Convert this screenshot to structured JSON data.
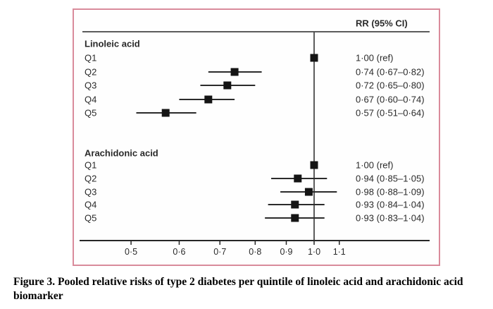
{
  "chart_data": {
    "type": "scatter",
    "variant": "forest-plot",
    "header_label": "RR (95% CI)",
    "x_scale": "log",
    "x_ticks": [
      0.5,
      0.6,
      0.7,
      0.8,
      0.9,
      1.0,
      1.1
    ],
    "x_tick_labels": [
      "0·5",
      "0·6",
      "0·7",
      "0·8",
      "0·9",
      "1·0",
      "1·1"
    ],
    "x_range": [
      0.45,
      1.18
    ],
    "reference_line": 1.0,
    "legend": "none",
    "grid": false,
    "groups": [
      {
        "label": "Linoleic acid",
        "rows": [
          {
            "label": "Q1",
            "rr": 1.0,
            "ci_low": null,
            "ci_high": null,
            "text": "1·00 (ref)"
          },
          {
            "label": "Q2",
            "rr": 0.74,
            "ci_low": 0.67,
            "ci_high": 0.82,
            "text": "0·74 (0·67–0·82)"
          },
          {
            "label": "Q3",
            "rr": 0.72,
            "ci_low": 0.65,
            "ci_high": 0.8,
            "text": "0·72 (0·65–0·80)"
          },
          {
            "label": "Q4",
            "rr": 0.67,
            "ci_low": 0.6,
            "ci_high": 0.74,
            "text": "0·67 (0·60–0·74)"
          },
          {
            "label": "Q5",
            "rr": 0.57,
            "ci_low": 0.51,
            "ci_high": 0.64,
            "text": "0·57 (0·51–0·64)"
          }
        ]
      },
      {
        "label": "Arachidonic acid",
        "rows": [
          {
            "label": "Q1",
            "rr": 1.0,
            "ci_low": null,
            "ci_high": null,
            "text": "1·00 (ref)"
          },
          {
            "label": "Q2",
            "rr": 0.94,
            "ci_low": 0.85,
            "ci_high": 1.05,
            "text": "0·94 (0·85–1·05)"
          },
          {
            "label": "Q3",
            "rr": 0.98,
            "ci_low": 0.88,
            "ci_high": 1.09,
            "text": "0·98 (0·88–1·09)"
          },
          {
            "label": "Q4",
            "rr": 0.93,
            "ci_low": 0.84,
            "ci_high": 1.04,
            "text": "0·93 (0·84–1·04)"
          },
          {
            "label": "Q5",
            "rr": 0.93,
            "ci_low": 0.83,
            "ci_high": 1.04,
            "text": "0·93 (0·83–1·04)"
          }
        ]
      }
    ],
    "colors": {
      "marker": "#141414",
      "ci_line": "#2b2b2b",
      "axis": "#262626",
      "reference_line": "#4a4a4a",
      "text": "#2a2a2a",
      "frame_border": "#d98b9b"
    }
  },
  "caption": {
    "text": "Figure 3. Pooled relative risks of type 2 diabetes per quintile of linoleic acid and arachidonic acid biomarker"
  }
}
